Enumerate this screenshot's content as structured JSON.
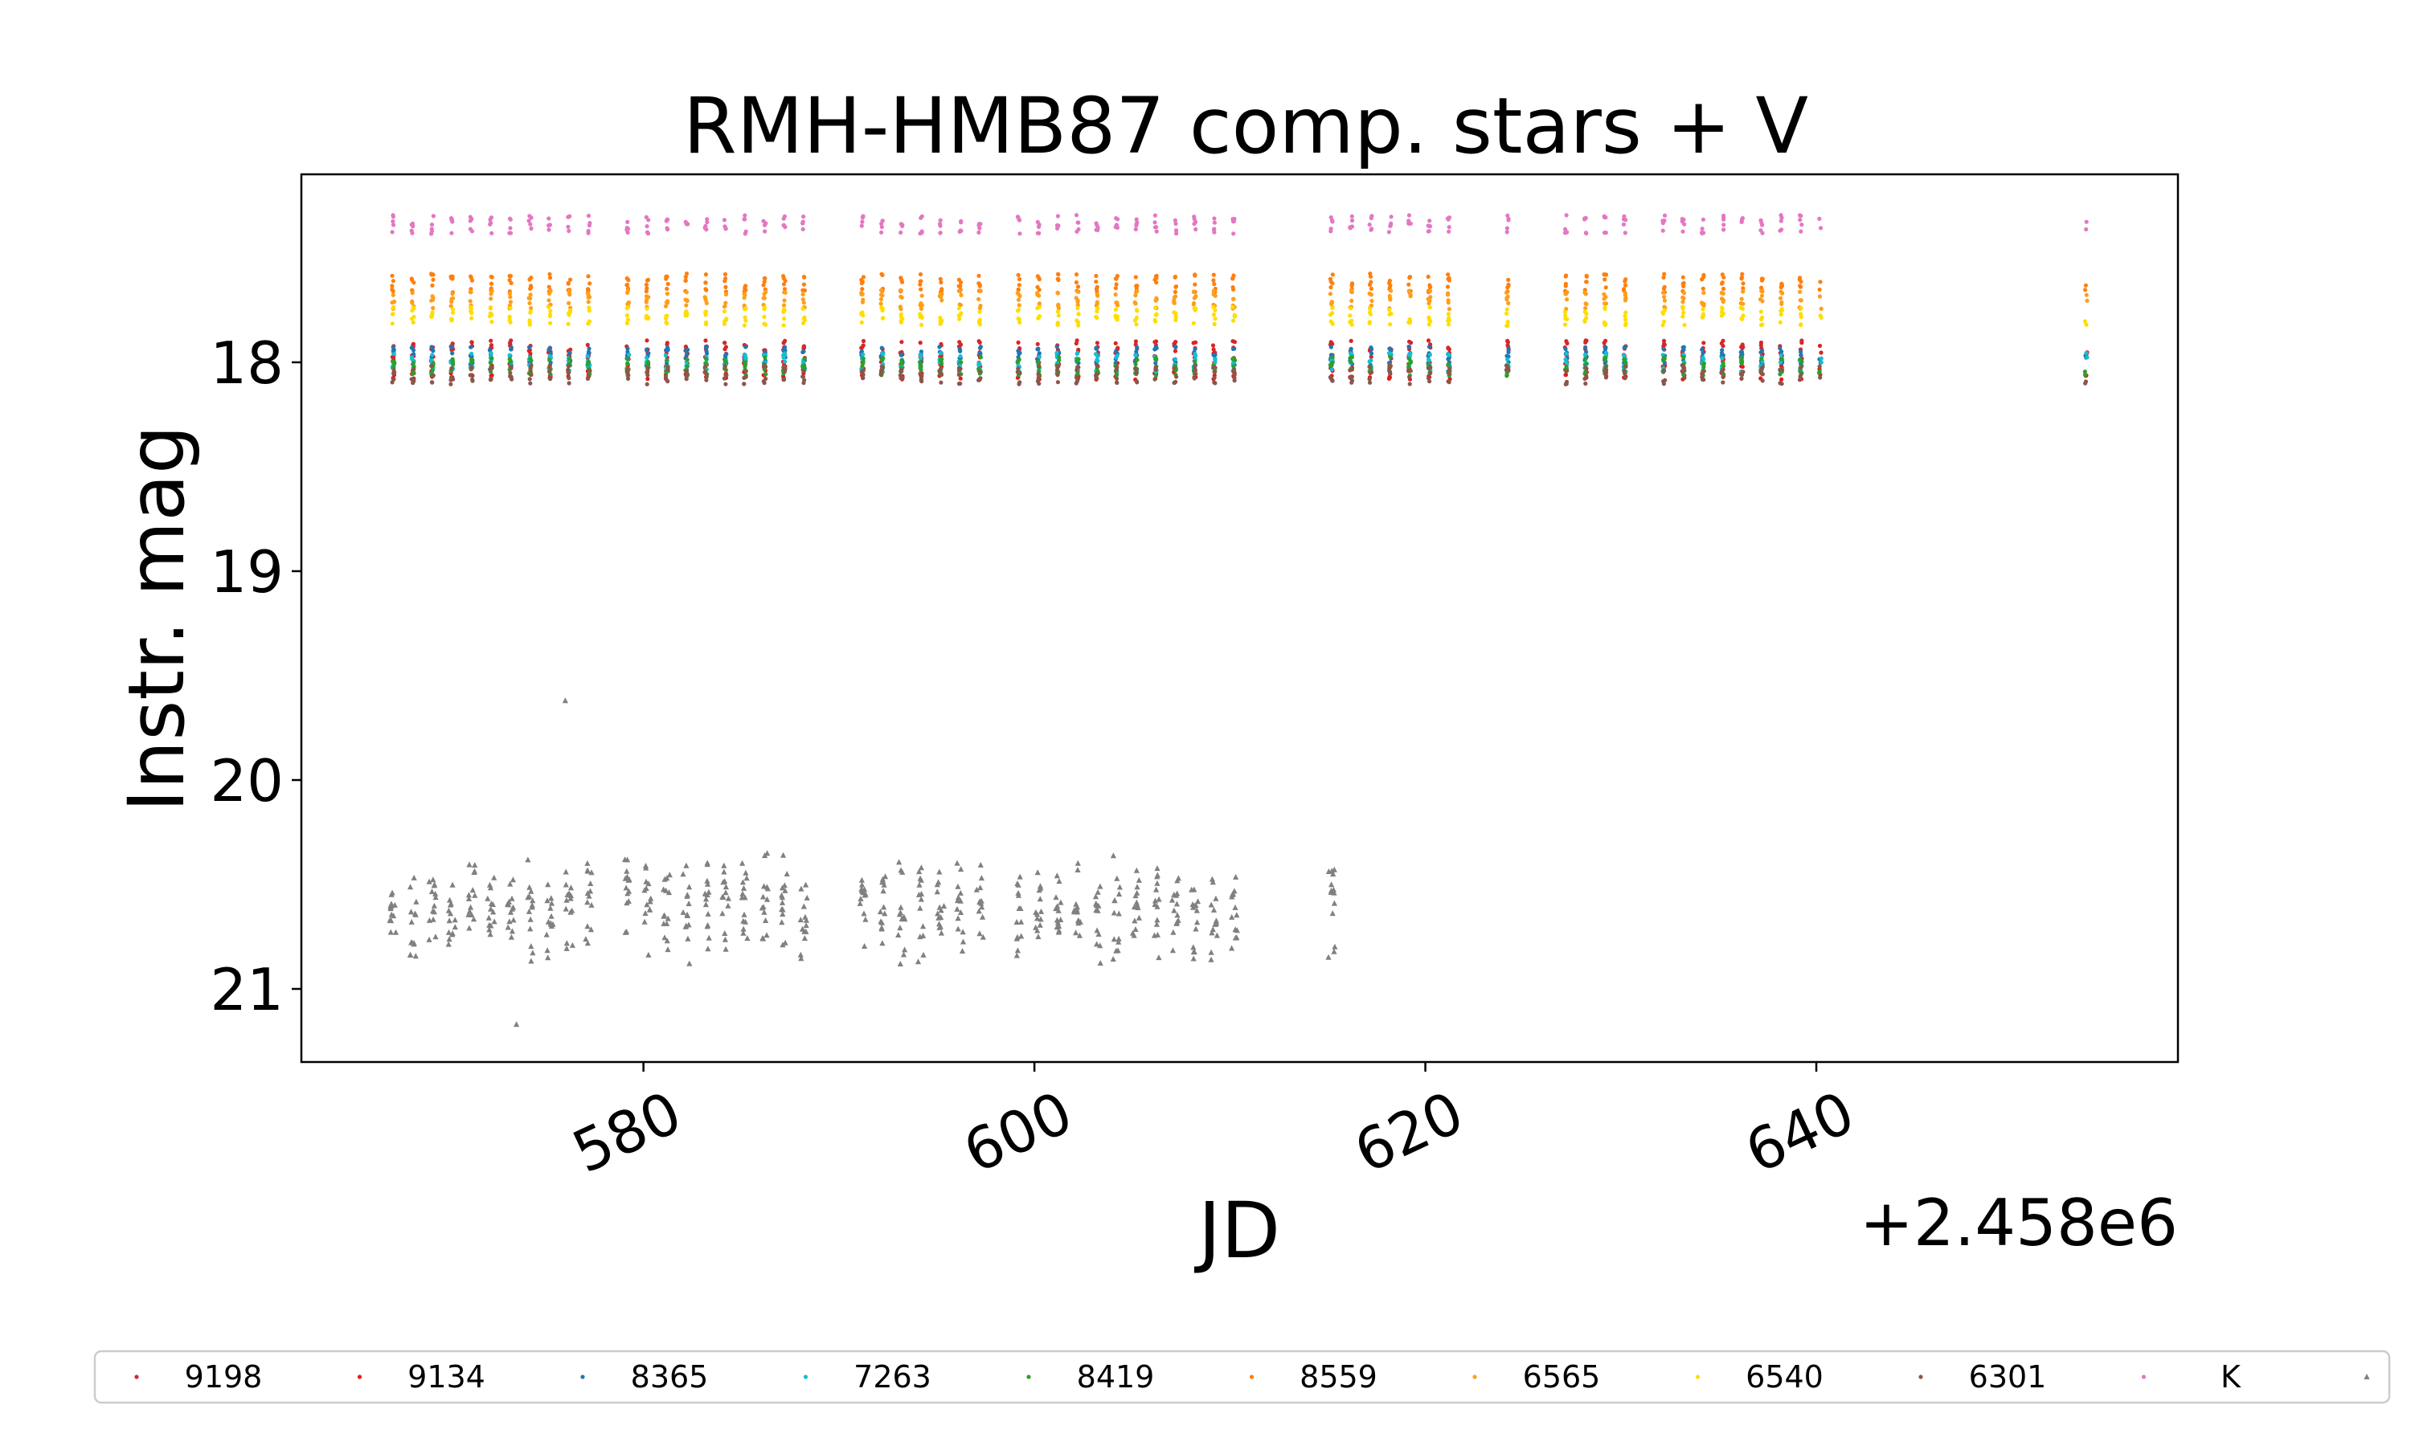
{
  "chart_data": {
    "type": "scatter",
    "title": "RMH-HMB87 comp. stars + V",
    "xlabel": "JD",
    "ylabel": "Instr. mag",
    "x_offset_label": "+2.458e6",
    "xlim": [
      562.5,
      658.5
    ],
    "ylim": [
      21.35,
      17.1
    ],
    "y_inverted": true,
    "xticks": [
      580,
      600,
      620,
      640
    ],
    "yticks": [
      18,
      19,
      20,
      21
    ],
    "xtick_rotation_deg": 25,
    "legend_placement": "below plot, single row",
    "nights": [
      567.2,
      568.2,
      569.2,
      570.2,
      571.2,
      572.2,
      573.2,
      574.2,
      575.2,
      576.2,
      577.2,
      579.2,
      580.2,
      581.2,
      582.2,
      583.2,
      584.2,
      585.2,
      586.2,
      587.2,
      588.2,
      591.2,
      592.2,
      593.2,
      594.2,
      595.2,
      596.2,
      597.2,
      599.2,
      600.2,
      601.2,
      602.2,
      603.2,
      604.2,
      605.2,
      606.2,
      607.2,
      608.2,
      609.2,
      610.2,
      615.2,
      616.2,
      617.2,
      618.2,
      619.2,
      620.2,
      621.2,
      624.2,
      627.2,
      628.2,
      629.2,
      630.2,
      632.2,
      633.2,
      634.2,
      635.2,
      636.2,
      637.2,
      638.2,
      639.2,
      640.2,
      653.8
    ],
    "series": [
      {
        "name": "9198",
        "color": "#d62728",
        "mag": 17.94
      },
      {
        "name": "9134",
        "color": "#e41a1c",
        "mag": 18.04
      },
      {
        "name": "8365",
        "color": "#1f77b4",
        "mag": 17.97
      },
      {
        "name": "7263",
        "color": "#17becf",
        "mag": 18.0
      },
      {
        "name": "8419",
        "color": "#2ca02c",
        "mag": 18.02
      },
      {
        "name": "8559",
        "color": "#ff7f0e",
        "mag": 17.62
      },
      {
        "name": "6565",
        "color": "#ff9e1b",
        "mag": 17.7
      },
      {
        "name": "6540",
        "color": "#ffdd00",
        "mag": 17.78
      },
      {
        "name": "6301",
        "color": "#8c564b",
        "mag": 18.06
      },
      {
        "name": "K",
        "color": "#e377c2",
        "mag": 17.34
      },
      {
        "name": "V",
        "color": "#808080",
        "mag": 20.62
      }
    ],
    "v_nights_last_x": 615.5,
    "v_outliers": [
      {
        "x": 576.0,
        "y": 19.62
      },
      {
        "x": 573.5,
        "y": 21.17
      }
    ]
  }
}
